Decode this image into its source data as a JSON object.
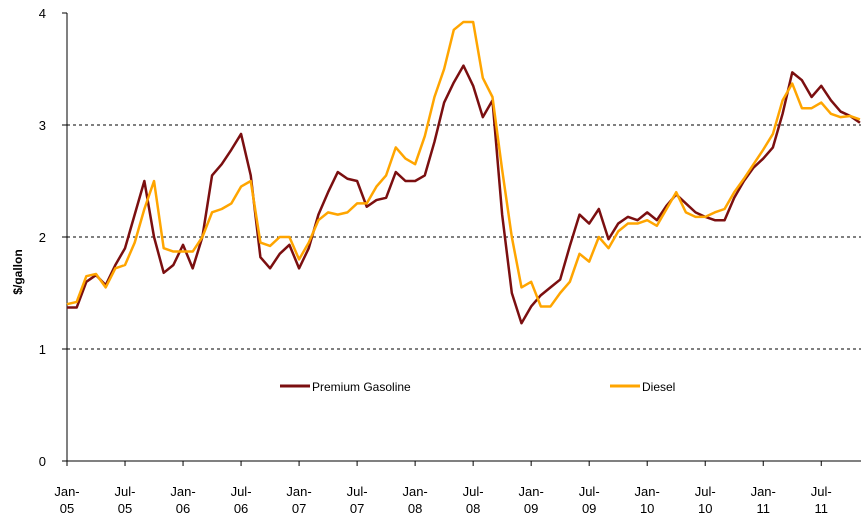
{
  "chart_data": {
    "type": "line",
    "y_label": "$/gallon",
    "categories": [
      "Jan-05",
      null,
      null,
      null,
      null,
      null,
      "Jul-05",
      null,
      null,
      null,
      null,
      null,
      "Jan-06",
      null,
      null,
      null,
      null,
      null,
      "Jul-06",
      null,
      null,
      null,
      null,
      null,
      "Jan-07",
      null,
      null,
      null,
      null,
      null,
      "Jul-07",
      null,
      null,
      null,
      null,
      null,
      "Jan-08",
      null,
      null,
      null,
      null,
      null,
      "Jul-08",
      null,
      null,
      null,
      null,
      null,
      "Jan-09",
      null,
      null,
      null,
      null,
      null,
      "Jul-09",
      null,
      null,
      null,
      null,
      null,
      "Jan-10",
      null,
      null,
      null,
      null,
      null,
      "Jul-10",
      null,
      null,
      null,
      null,
      null,
      "Jan-11",
      null,
      null,
      null,
      null,
      null,
      "Jul-11",
      null,
      null,
      null,
      null
    ],
    "series": [
      {
        "name": "Premium Gasoline",
        "color": "#7b0f10",
        "values": [
          1.37,
          1.37,
          1.6,
          1.66,
          1.57,
          1.75,
          1.9,
          2.2,
          2.5,
          2.0,
          1.68,
          1.75,
          1.93,
          1.72,
          2.0,
          2.55,
          2.65,
          2.78,
          2.92,
          2.55,
          1.82,
          1.72,
          1.85,
          1.93,
          1.72,
          1.9,
          2.2,
          2.4,
          2.58,
          2.52,
          2.5,
          2.27,
          2.33,
          2.35,
          2.58,
          2.5,
          2.5,
          2.55,
          2.85,
          3.2,
          3.38,
          3.53,
          3.35,
          3.07,
          3.22,
          2.2,
          1.5,
          1.23,
          1.38,
          1.48,
          1.55,
          1.62,
          1.92,
          2.2,
          2.12,
          2.25,
          1.98,
          2.12,
          2.18,
          2.15,
          2.22,
          2.15,
          2.28,
          2.38,
          2.3,
          2.22,
          2.18,
          2.15,
          2.15,
          2.35,
          2.5,
          2.62,
          2.7,
          2.8,
          3.1,
          3.47,
          3.4,
          3.25,
          3.35,
          3.22,
          3.12,
          3.08,
          3.02
        ]
      },
      {
        "name": "Diesel",
        "color": "#ffa500",
        "values": [
          1.4,
          1.42,
          1.65,
          1.67,
          1.55,
          1.72,
          1.75,
          1.95,
          2.25,
          2.5,
          1.9,
          1.87,
          1.87,
          1.87,
          2.0,
          2.22,
          2.25,
          2.3,
          2.45,
          2.5,
          1.95,
          1.92,
          2.0,
          2.0,
          1.8,
          1.95,
          2.15,
          2.22,
          2.2,
          2.22,
          2.3,
          2.3,
          2.45,
          2.55,
          2.8,
          2.7,
          2.65,
          2.9,
          3.25,
          3.5,
          3.85,
          3.92,
          3.92,
          3.42,
          3.25,
          2.6,
          2.0,
          1.55,
          1.6,
          1.38,
          1.38,
          1.5,
          1.6,
          1.85,
          1.78,
          2.0,
          1.9,
          2.05,
          2.12,
          2.12,
          2.15,
          2.1,
          2.25,
          2.4,
          2.22,
          2.18,
          2.18,
          2.22,
          2.25,
          2.4,
          2.52,
          2.65,
          2.78,
          2.92,
          3.22,
          3.37,
          3.15,
          3.15,
          3.2,
          3.1,
          3.07,
          3.08,
          3.05
        ]
      }
    ],
    "ylim": [
      0,
      4
    ],
    "yticks": [
      0,
      1,
      2,
      3,
      4
    ],
    "grid": true,
    "legend": "center"
  }
}
